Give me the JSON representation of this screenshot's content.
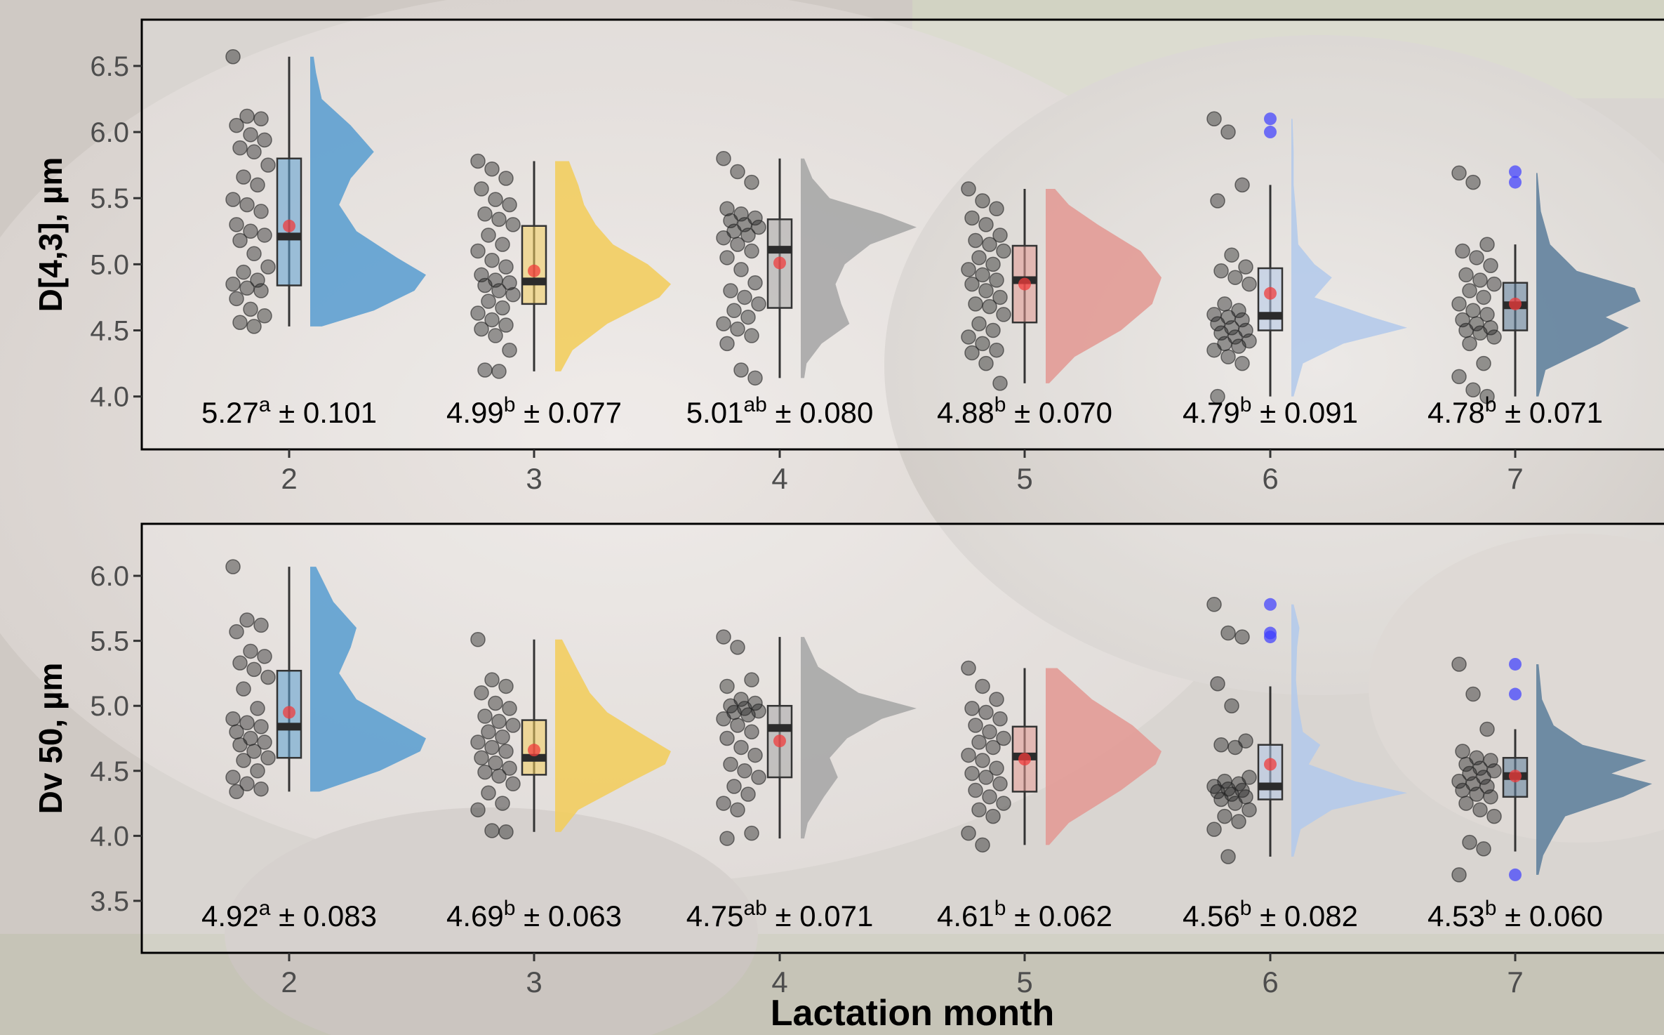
{
  "chart_data": [
    {
      "type": "raincloud",
      "ylabel": "D[4,3], µm",
      "xlabel": "",
      "ylim": [
        3.6,
        6.85
      ],
      "yticks": [
        4.0,
        4.5,
        5.0,
        5.5,
        6.0,
        6.5
      ],
      "categories": [
        "2",
        "3",
        "4",
        "5",
        "6",
        "7"
      ],
      "colors": [
        "#5b9ed0",
        "#f2cd5c",
        "#a6a6a6",
        "#e39a94",
        "#b3c9ea",
        "#5f7f9c"
      ],
      "boxes": [
        {
          "q1": 4.84,
          "median": 5.21,
          "q3": 5.8,
          "whisker_low": 4.53,
          "whisker_high": 6.57,
          "mean": 5.29
        },
        {
          "q1": 4.7,
          "median": 4.87,
          "q3": 5.29,
          "whisker_low": 4.19,
          "whisker_high": 5.78,
          "mean": 4.95
        },
        {
          "q1": 4.67,
          "median": 5.11,
          "q3": 5.34,
          "whisker_low": 4.14,
          "whisker_high": 5.8,
          "mean": 5.01
        },
        {
          "q1": 4.56,
          "median": 4.88,
          "q3": 5.14,
          "whisker_low": 4.1,
          "whisker_high": 5.57,
          "mean": 4.85
        },
        {
          "q1": 4.5,
          "median": 4.61,
          "q3": 4.97,
          "whisker_low": 4.0,
          "whisker_high": 5.6,
          "mean": 4.78
        },
        {
          "q1": 4.5,
          "median": 4.69,
          "q3": 4.86,
          "whisker_low": 4.0,
          "whisker_high": 5.15,
          "mean": 4.7
        }
      ],
      "outliers": [
        [],
        [],
        [],
        [],
        [
          6.1,
          6.0
        ],
        [
          5.7,
          5.62
        ]
      ],
      "points": [
        [
          6.57,
          6.12,
          6.1,
          6.05,
          5.98,
          5.94,
          5.88,
          5.85,
          5.75,
          5.66,
          5.6,
          5.49,
          5.45,
          5.4,
          5.3,
          5.25,
          5.22,
          5.18,
          5.08,
          4.98,
          4.94,
          4.88,
          4.85,
          4.82,
          4.8,
          4.74,
          4.66,
          4.61,
          4.56,
          4.53
        ],
        [
          5.78,
          5.72,
          5.65,
          5.57,
          5.49,
          5.45,
          5.38,
          5.34,
          5.3,
          5.22,
          5.15,
          5.1,
          5.03,
          4.98,
          4.92,
          4.88,
          4.86,
          4.84,
          4.8,
          4.77,
          4.72,
          4.67,
          4.63,
          4.58,
          4.54,
          4.51,
          4.46,
          4.35,
          4.2,
          4.19
        ],
        [
          5.8,
          5.7,
          5.62,
          5.42,
          5.38,
          5.35,
          5.33,
          5.3,
          5.28,
          5.25,
          5.22,
          5.2,
          5.15,
          5.1,
          5.05,
          4.96,
          4.86,
          4.8,
          4.75,
          4.7,
          4.65,
          4.6,
          4.55,
          4.51,
          4.46,
          4.4,
          4.2,
          4.14
        ],
        [
          5.57,
          5.48,
          5.42,
          5.35,
          5.3,
          5.22,
          5.18,
          5.15,
          5.1,
          5.05,
          5.0,
          4.96,
          4.92,
          4.88,
          4.85,
          4.8,
          4.75,
          4.7,
          4.68,
          4.62,
          4.55,
          4.5,
          4.45,
          4.4,
          4.35,
          4.33,
          4.25,
          4.1
        ],
        [
          6.1,
          6.0,
          5.6,
          5.48,
          5.07,
          4.98,
          4.95,
          4.9,
          4.85,
          4.7,
          4.65,
          4.62,
          4.6,
          4.58,
          4.55,
          4.52,
          4.5,
          4.48,
          4.45,
          4.42,
          4.4,
          4.38,
          4.35,
          4.3,
          4.25,
          4.0
        ],
        [
          5.69,
          5.62,
          5.15,
          5.1,
          5.05,
          4.99,
          4.92,
          4.88,
          4.85,
          4.8,
          4.75,
          4.7,
          4.65,
          4.62,
          4.58,
          4.55,
          4.52,
          4.5,
          4.48,
          4.45,
          4.4,
          4.25,
          4.15,
          4.05,
          4.0
        ]
      ],
      "density": [
        [
          [
            4.53,
            0.1
          ],
          [
            4.65,
            0.55
          ],
          [
            4.8,
            0.9
          ],
          [
            4.92,
            1.0
          ],
          [
            5.05,
            0.75
          ],
          [
            5.25,
            0.4
          ],
          [
            5.45,
            0.25
          ],
          [
            5.65,
            0.35
          ],
          [
            5.85,
            0.55
          ],
          [
            6.05,
            0.35
          ],
          [
            6.25,
            0.1
          ],
          [
            6.45,
            0.05
          ],
          [
            6.57,
            0.03
          ]
        ],
        [
          [
            4.19,
            0.05
          ],
          [
            4.35,
            0.15
          ],
          [
            4.55,
            0.45
          ],
          [
            4.75,
            0.9
          ],
          [
            4.85,
            1.0
          ],
          [
            5.0,
            0.8
          ],
          [
            5.15,
            0.5
          ],
          [
            5.3,
            0.35
          ],
          [
            5.45,
            0.25
          ],
          [
            5.6,
            0.2
          ],
          [
            5.78,
            0.12
          ]
        ],
        [
          [
            4.14,
            0.03
          ],
          [
            4.25,
            0.05
          ],
          [
            4.4,
            0.18
          ],
          [
            4.55,
            0.42
          ],
          [
            4.7,
            0.35
          ],
          [
            4.85,
            0.3
          ],
          [
            5.0,
            0.38
          ],
          [
            5.15,
            0.6
          ],
          [
            5.28,
            1.0
          ],
          [
            5.38,
            0.7
          ],
          [
            5.5,
            0.25
          ],
          [
            5.65,
            0.1
          ],
          [
            5.8,
            0.03
          ]
        ],
        [
          [
            4.1,
            0.03
          ],
          [
            4.3,
            0.25
          ],
          [
            4.5,
            0.65
          ],
          [
            4.7,
            0.92
          ],
          [
            4.9,
            1.0
          ],
          [
            5.1,
            0.82
          ],
          [
            5.3,
            0.45
          ],
          [
            5.45,
            0.2
          ],
          [
            5.57,
            0.08
          ]
        ],
        [
          [
            4.0,
            0.02
          ],
          [
            4.25,
            0.1
          ],
          [
            4.4,
            0.45
          ],
          [
            4.52,
            1.0
          ],
          [
            4.6,
            0.7
          ],
          [
            4.75,
            0.2
          ],
          [
            4.9,
            0.35
          ],
          [
            5.0,
            0.2
          ],
          [
            5.15,
            0.06
          ],
          [
            5.4,
            0.04
          ],
          [
            5.6,
            0.02
          ],
          [
            5.85,
            0.02
          ],
          [
            6.1,
            0.01
          ]
        ],
        [
          [
            4.0,
            0.02
          ],
          [
            4.2,
            0.08
          ],
          [
            4.4,
            0.55
          ],
          [
            4.52,
            0.8
          ],
          [
            4.6,
            0.6
          ],
          [
            4.72,
            0.9
          ],
          [
            4.82,
            0.85
          ],
          [
            4.95,
            0.35
          ],
          [
            5.15,
            0.12
          ],
          [
            5.4,
            0.04
          ],
          [
            5.69,
            0.01
          ]
        ]
      ],
      "annotations": [
        {
          "value": "5.27",
          "sup": "a",
          "se": "± 0.101"
        },
        {
          "value": "4.99",
          "sup": "b",
          "se": "± 0.077"
        },
        {
          "value": "5.01",
          "sup": "ab",
          "se": "± 0.080"
        },
        {
          "value": "4.88",
          "sup": "b",
          "se": "± 0.070"
        },
        {
          "value": "4.79",
          "sup": "b",
          "se": "± 0.091"
        },
        {
          "value": "4.78",
          "sup": "b",
          "se": "± 0.071"
        }
      ]
    },
    {
      "type": "raincloud",
      "ylabel": "Dv 50, µm",
      "xlabel": "Lactation month",
      "ylim": [
        3.1,
        6.4
      ],
      "yticks": [
        3.5,
        4.0,
        4.5,
        5.0,
        5.5,
        6.0
      ],
      "categories": [
        "2",
        "3",
        "4",
        "5",
        "6",
        "7"
      ],
      "colors": [
        "#5b9ed0",
        "#f2cd5c",
        "#a6a6a6",
        "#e39a94",
        "#b3c9ea",
        "#5f7f9c"
      ],
      "boxes": [
        {
          "q1": 4.6,
          "median": 4.84,
          "q3": 5.27,
          "whisker_low": 4.34,
          "whisker_high": 6.07,
          "mean": 4.95
        },
        {
          "q1": 4.47,
          "median": 4.6,
          "q3": 4.89,
          "whisker_low": 4.03,
          "whisker_high": 5.51,
          "mean": 4.66
        },
        {
          "q1": 4.45,
          "median": 4.83,
          "q3": 5.0,
          "whisker_low": 3.98,
          "whisker_high": 5.53,
          "mean": 4.73
        },
        {
          "q1": 4.34,
          "median": 4.61,
          "q3": 4.84,
          "whisker_low": 3.93,
          "whisker_high": 5.29,
          "mean": 4.59
        },
        {
          "q1": 4.28,
          "median": 4.38,
          "q3": 4.7,
          "whisker_low": 3.84,
          "whisker_high": 5.15,
          "mean": 4.55
        },
        {
          "q1": 4.3,
          "median": 4.46,
          "q3": 4.6,
          "whisker_low": 3.88,
          "whisker_high": 4.82,
          "mean": 4.46
        }
      ],
      "outliers": [
        [],
        [],
        [],
        [],
        [
          5.78,
          5.56,
          5.53
        ],
        [
          5.32,
          5.09,
          3.7
        ]
      ],
      "points": [
        [
          6.07,
          5.66,
          5.62,
          5.57,
          5.42,
          5.38,
          5.33,
          5.28,
          5.22,
          5.13,
          4.98,
          4.9,
          4.87,
          4.84,
          4.8,
          4.75,
          4.72,
          4.7,
          4.65,
          4.6,
          4.58,
          4.5,
          4.45,
          4.4,
          4.36,
          4.34
        ],
        [
          5.51,
          5.2,
          5.15,
          5.1,
          5.02,
          4.98,
          4.92,
          4.88,
          4.85,
          4.8,
          4.76,
          4.72,
          4.68,
          4.65,
          4.6,
          4.56,
          4.52,
          4.49,
          4.46,
          4.4,
          4.33,
          4.25,
          4.2,
          4.04,
          4.03
        ],
        [
          5.53,
          5.45,
          5.2,
          5.15,
          5.05,
          5.02,
          5.0,
          4.98,
          4.96,
          4.95,
          4.93,
          4.9,
          4.85,
          4.8,
          4.75,
          4.68,
          4.62,
          4.55,
          4.5,
          4.45,
          4.38,
          4.32,
          4.25,
          4.2,
          4.02,
          3.98
        ],
        [
          5.29,
          5.15,
          5.05,
          4.98,
          4.95,
          4.9,
          4.85,
          4.8,
          4.75,
          4.72,
          4.68,
          4.62,
          4.58,
          4.52,
          4.48,
          4.45,
          4.4,
          4.35,
          4.3,
          4.25,
          4.2,
          4.15,
          4.02,
          3.93
        ],
        [
          5.78,
          5.56,
          5.53,
          5.17,
          5.0,
          4.73,
          4.7,
          4.68,
          4.45,
          4.42,
          4.4,
          4.38,
          4.36,
          4.35,
          4.34,
          4.32,
          4.3,
          4.28,
          4.25,
          4.2,
          4.15,
          4.11,
          4.05,
          3.84
        ],
        [
          5.32,
          5.09,
          4.82,
          4.65,
          4.6,
          4.58,
          4.55,
          4.52,
          4.5,
          4.48,
          4.45,
          4.42,
          4.4,
          4.38,
          4.35,
          4.32,
          4.3,
          4.25,
          4.2,
          4.15,
          3.95,
          3.9,
          3.7
        ]
      ],
      "density": [
        [
          [
            4.34,
            0.08
          ],
          [
            4.5,
            0.6
          ],
          [
            4.65,
            0.95
          ],
          [
            4.75,
            1.0
          ],
          [
            4.9,
            0.7
          ],
          [
            5.05,
            0.4
          ],
          [
            5.25,
            0.25
          ],
          [
            5.45,
            0.35
          ],
          [
            5.6,
            0.4
          ],
          [
            5.8,
            0.2
          ],
          [
            6.07,
            0.05
          ]
        ],
        [
          [
            4.03,
            0.05
          ],
          [
            4.2,
            0.2
          ],
          [
            4.4,
            0.62
          ],
          [
            4.55,
            0.95
          ],
          [
            4.65,
            1.0
          ],
          [
            4.8,
            0.72
          ],
          [
            4.95,
            0.45
          ],
          [
            5.1,
            0.3
          ],
          [
            5.3,
            0.18
          ],
          [
            5.51,
            0.06
          ]
        ],
        [
          [
            3.98,
            0.03
          ],
          [
            4.1,
            0.06
          ],
          [
            4.3,
            0.2
          ],
          [
            4.45,
            0.32
          ],
          [
            4.6,
            0.25
          ],
          [
            4.75,
            0.4
          ],
          [
            4.9,
            0.7
          ],
          [
            4.98,
            1.0
          ],
          [
            5.1,
            0.5
          ],
          [
            5.3,
            0.15
          ],
          [
            5.53,
            0.03
          ]
        ],
        [
          [
            3.93,
            0.03
          ],
          [
            4.1,
            0.2
          ],
          [
            4.35,
            0.65
          ],
          [
            4.55,
            0.95
          ],
          [
            4.65,
            1.0
          ],
          [
            4.85,
            0.75
          ],
          [
            5.05,
            0.4
          ],
          [
            5.29,
            0.1
          ]
        ],
        [
          [
            3.84,
            0.02
          ],
          [
            4.05,
            0.08
          ],
          [
            4.2,
            0.35
          ],
          [
            4.33,
            1.0
          ],
          [
            4.42,
            0.55
          ],
          [
            4.55,
            0.15
          ],
          [
            4.7,
            0.25
          ],
          [
            4.8,
            0.1
          ],
          [
            5.0,
            0.06
          ],
          [
            5.2,
            0.04
          ],
          [
            5.45,
            0.05
          ],
          [
            5.6,
            0.07
          ],
          [
            5.78,
            0.02
          ]
        ],
        [
          [
            3.7,
            0.02
          ],
          [
            3.85,
            0.06
          ],
          [
            4.0,
            0.15
          ],
          [
            4.15,
            0.25
          ],
          [
            4.3,
            0.75
          ],
          [
            4.4,
            1.0
          ],
          [
            4.48,
            0.65
          ],
          [
            4.58,
            0.95
          ],
          [
            4.7,
            0.4
          ],
          [
            4.85,
            0.15
          ],
          [
            5.05,
            0.05
          ],
          [
            5.32,
            0.02
          ]
        ]
      ],
      "annotations": [
        {
          "value": "4.92",
          "sup": "a",
          "se": "± 0.083"
        },
        {
          "value": "4.69",
          "sup": "b",
          "se": "± 0.063"
        },
        {
          "value": "4.75",
          "sup": "ab",
          "se": "± 0.071"
        },
        {
          "value": "4.61",
          "sup": "b",
          "se": "± 0.062"
        },
        {
          "value": "4.56",
          "sup": "b",
          "se": "± 0.082"
        },
        {
          "value": "4.53",
          "sup": "b",
          "se": "± 0.060"
        }
      ]
    }
  ]
}
